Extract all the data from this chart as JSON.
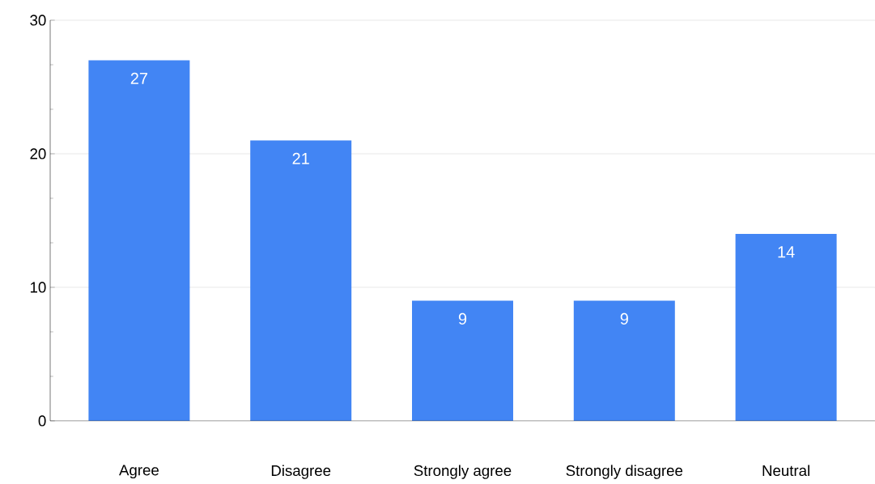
{
  "chart_data": {
    "type": "bar",
    "categories": [
      "Agree",
      "Disagree",
      "Strongly agree",
      "Strongly disagree",
      "Neutral"
    ],
    "values": [
      27,
      21,
      9,
      9,
      14
    ],
    "color": "#4285f4",
    "ylim": [
      0,
      30
    ],
    "yticks": [
      0,
      10,
      20,
      30
    ],
    "grid": "y",
    "data_labels": true
  }
}
